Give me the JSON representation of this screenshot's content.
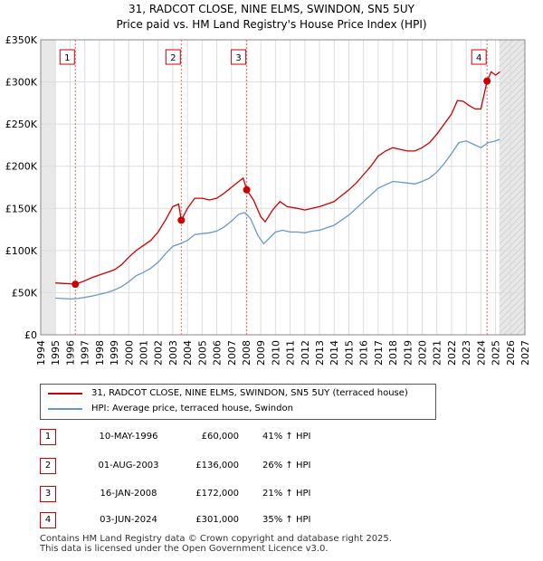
{
  "chart_data": {
    "type": "line",
    "title": "31, RADCOT CLOSE, NINE ELMS, SWINDON, SN5 5UY",
    "subtitle": "Price paid vs. HM Land Registry's House Price Index (HPI)",
    "xlim": [
      1994,
      2027
    ],
    "ylim": [
      0,
      350000
    ],
    "x_ticks": [
      1994,
      1995,
      1996,
      1997,
      1998,
      1999,
      2000,
      2001,
      2002,
      2003,
      2004,
      2005,
      2006,
      2007,
      2008,
      2009,
      2010,
      2011,
      2012,
      2013,
      2014,
      2015,
      2016,
      2017,
      2018,
      2019,
      2020,
      2021,
      2022,
      2023,
      2024,
      2025,
      2026,
      2027
    ],
    "y_ticks": [
      {
        "value": 0,
        "label": "£0"
      },
      {
        "value": 50000,
        "label": "£50K"
      },
      {
        "value": 100000,
        "label": "£100K"
      },
      {
        "value": 150000,
        "label": "£150K"
      },
      {
        "value": 200000,
        "label": "£200K"
      },
      {
        "value": 250000,
        "label": "£250K"
      },
      {
        "value": 300000,
        "label": "£300K"
      },
      {
        "value": 350000,
        "label": "£350K"
      }
    ],
    "shaded_regions": [
      {
        "from": 1994,
        "to": 1995.0
      },
      {
        "from": 2025.25,
        "to": 2027
      }
    ],
    "series": [
      {
        "name": "31, RADCOT CLOSE, NINE ELMS, SWINDON, SN5 5UY (terraced house)",
        "color": "#cc0000",
        "points": [
          [
            1995.0,
            61500
          ],
          [
            1995.5,
            61000
          ],
          [
            1996.0,
            60500
          ],
          [
            1996.36,
            60000
          ],
          [
            1997.0,
            64000
          ],
          [
            1997.5,
            68000
          ],
          [
            1998.0,
            71000
          ],
          [
            1998.5,
            74000
          ],
          [
            1999.0,
            77000
          ],
          [
            1999.5,
            83000
          ],
          [
            2000.0,
            92000
          ],
          [
            2000.5,
            100000
          ],
          [
            2001.0,
            106000
          ],
          [
            2001.5,
            112000
          ],
          [
            2002.0,
            122000
          ],
          [
            2002.5,
            136000
          ],
          [
            2003.0,
            152000
          ],
          [
            2003.4,
            155000
          ],
          [
            2003.58,
            136000
          ],
          [
            2004.0,
            150000
          ],
          [
            2004.5,
            162000
          ],
          [
            2005.0,
            162000
          ],
          [
            2005.5,
            160000
          ],
          [
            2006.0,
            162000
          ],
          [
            2006.5,
            168000
          ],
          [
            2007.0,
            175000
          ],
          [
            2007.5,
            182000
          ],
          [
            2007.8,
            186000
          ],
          [
            2008.04,
            172000
          ],
          [
            2008.5,
            160000
          ],
          [
            2009.0,
            140000
          ],
          [
            2009.3,
            134000
          ],
          [
            2009.8,
            148000
          ],
          [
            2010.3,
            158000
          ],
          [
            2010.8,
            152000
          ],
          [
            2011.5,
            150000
          ],
          [
            2012.0,
            148000
          ],
          [
            2012.5,
            150000
          ],
          [
            2013.0,
            152000
          ],
          [
            2013.5,
            155000
          ],
          [
            2014.0,
            158000
          ],
          [
            2014.5,
            165000
          ],
          [
            2015.0,
            172000
          ],
          [
            2015.5,
            180000
          ],
          [
            2016.0,
            190000
          ],
          [
            2016.5,
            200000
          ],
          [
            2017.0,
            212000
          ],
          [
            2017.5,
            218000
          ],
          [
            2018.0,
            222000
          ],
          [
            2018.5,
            220000
          ],
          [
            2019.0,
            218000
          ],
          [
            2019.5,
            218000
          ],
          [
            2020.0,
            222000
          ],
          [
            2020.5,
            228000
          ],
          [
            2021.0,
            238000
          ],
          [
            2021.5,
            250000
          ],
          [
            2022.0,
            262000
          ],
          [
            2022.4,
            278000
          ],
          [
            2022.8,
            277000
          ],
          [
            2023.2,
            272000
          ],
          [
            2023.6,
            268000
          ],
          [
            2024.0,
            268000
          ],
          [
            2024.42,
            301000
          ],
          [
            2024.7,
            312000
          ],
          [
            2025.0,
            308000
          ],
          [
            2025.3,
            312000
          ]
        ]
      },
      {
        "name": "HPI: Average price, terraced house, Swindon",
        "color": "#6699cc",
        "points": [
          [
            1995.0,
            43500
          ],
          [
            1995.5,
            43000
          ],
          [
            1996.0,
            42500
          ],
          [
            1996.5,
            43000
          ],
          [
            1997.0,
            44500
          ],
          [
            1997.5,
            46000
          ],
          [
            1998.0,
            48000
          ],
          [
            1998.5,
            50000
          ],
          [
            1999.0,
            53000
          ],
          [
            1999.5,
            57000
          ],
          [
            2000.0,
            63000
          ],
          [
            2000.5,
            70000
          ],
          [
            2001.0,
            74000
          ],
          [
            2001.5,
            79000
          ],
          [
            2002.0,
            86000
          ],
          [
            2002.5,
            96000
          ],
          [
            2003.0,
            105000
          ],
          [
            2003.5,
            108000
          ],
          [
            2004.0,
            112000
          ],
          [
            2004.5,
            119000
          ],
          [
            2005.0,
            120000
          ],
          [
            2005.5,
            121000
          ],
          [
            2006.0,
            123000
          ],
          [
            2006.5,
            128000
          ],
          [
            2007.0,
            135000
          ],
          [
            2007.5,
            143000
          ],
          [
            2007.9,
            145000
          ],
          [
            2008.3,
            138000
          ],
          [
            2008.8,
            118000
          ],
          [
            2009.2,
            108000
          ],
          [
            2009.6,
            115000
          ],
          [
            2010.0,
            122000
          ],
          [
            2010.5,
            124000
          ],
          [
            2011.0,
            122000
          ],
          [
            2011.5,
            122000
          ],
          [
            2012.0,
            121000
          ],
          [
            2012.5,
            123000
          ],
          [
            2013.0,
            124000
          ],
          [
            2013.5,
            127000
          ],
          [
            2014.0,
            130000
          ],
          [
            2014.5,
            136000
          ],
          [
            2015.0,
            142000
          ],
          [
            2015.5,
            150000
          ],
          [
            2016.0,
            158000
          ],
          [
            2016.5,
            166000
          ],
          [
            2017.0,
            174000
          ],
          [
            2017.5,
            178000
          ],
          [
            2018.0,
            182000
          ],
          [
            2018.5,
            181000
          ],
          [
            2019.0,
            180000
          ],
          [
            2019.5,
            179000
          ],
          [
            2020.0,
            182000
          ],
          [
            2020.5,
            186000
          ],
          [
            2021.0,
            193000
          ],
          [
            2021.5,
            203000
          ],
          [
            2022.0,
            215000
          ],
          [
            2022.5,
            228000
          ],
          [
            2023.0,
            230000
          ],
          [
            2023.5,
            226000
          ],
          [
            2024.0,
            222000
          ],
          [
            2024.5,
            228000
          ],
          [
            2025.0,
            230000
          ],
          [
            2025.3,
            232000
          ]
        ]
      }
    ],
    "transactions": [
      {
        "label": "1",
        "x": 1996.36,
        "y": 60000,
        "date": "10-MAY-1996",
        "price": "£60,000",
        "hpi": "41% ↑ HPI"
      },
      {
        "label": "2",
        "x": 2003.58,
        "y": 136000,
        "date": "01-AUG-2003",
        "price": "£136,000",
        "hpi": "26% ↑ HPI"
      },
      {
        "label": "3",
        "x": 2008.04,
        "y": 172000,
        "date": "16-JAN-2008",
        "price": "£172,000",
        "hpi": "21% ↑ HPI"
      },
      {
        "label": "4",
        "x": 2024.42,
        "y": 301000,
        "date": "03-JUN-2024",
        "price": "£301,000",
        "hpi": "35% ↑ HPI"
      }
    ]
  },
  "legend": {
    "property_label": "31, RADCOT CLOSE, NINE ELMS, SWINDON, SN5 5UY (terraced house)",
    "hpi_label": "HPI: Average price, terraced house, Swindon",
    "property_color": "#cc0000",
    "hpi_color": "#6699cc"
  },
  "footer": {
    "line1": "Contains HM Land Registry data © Crown copyright and database right 2025.",
    "line2": "This data is licensed under the Open Government Licence v3.0."
  }
}
